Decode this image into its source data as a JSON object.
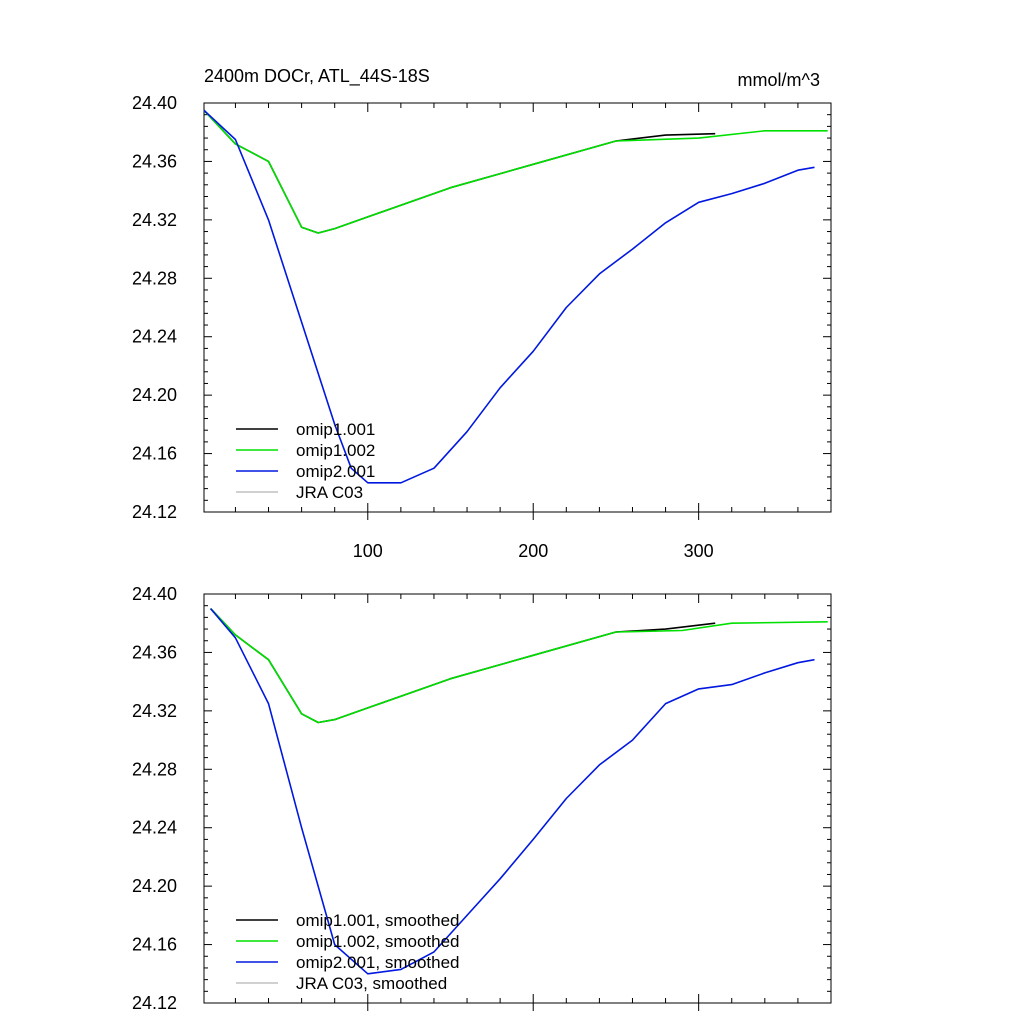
{
  "chart_data": [
    {
      "type": "line",
      "title": "2400m DOCr, ATL_44S-18S",
      "units": "mmol/m^3",
      "xlim": [
        1,
        380
      ],
      "ylim": [
        24.12,
        24.4
      ],
      "x_tick_labels": [
        "100",
        "200",
        "300"
      ],
      "x_tick_values": [
        100,
        200,
        300
      ],
      "y_tick_labels": [
        "24.40",
        "24.36",
        "24.32",
        "24.28",
        "24.24",
        "24.20",
        "24.16",
        "24.12"
      ],
      "y_tick_values": [
        24.4,
        24.36,
        24.32,
        24.28,
        24.24,
        24.2,
        24.16,
        24.12
      ],
      "grid": false,
      "legend_position": "bottom-left",
      "series": [
        {
          "name": "omip1.001",
          "color": "#000000",
          "x": [
            1,
            20,
            40,
            60,
            70,
            80,
            100,
            150,
            200,
            250,
            280,
            310
          ],
          "y": [
            24.395,
            24.372,
            24.36,
            24.315,
            24.311,
            24.314,
            24.322,
            24.342,
            24.358,
            24.374,
            24.378,
            24.379
          ]
        },
        {
          "name": "omip1.002",
          "color": "#00e000",
          "x": [
            1,
            20,
            40,
            60,
            70,
            80,
            100,
            150,
            200,
            250,
            300,
            340,
            378
          ],
          "y": [
            24.395,
            24.372,
            24.36,
            24.315,
            24.311,
            24.314,
            24.322,
            24.342,
            24.358,
            24.374,
            24.376,
            24.381,
            24.381
          ]
        },
        {
          "name": "omip2.001",
          "color": "#0018e0",
          "x": [
            1,
            20,
            40,
            60,
            80,
            90,
            100,
            120,
            140,
            160,
            180,
            200,
            220,
            240,
            260,
            280,
            300,
            320,
            340,
            360,
            370
          ],
          "y": [
            24.395,
            24.375,
            24.32,
            24.25,
            24.18,
            24.15,
            24.14,
            24.14,
            24.15,
            24.175,
            24.205,
            24.23,
            24.26,
            24.283,
            24.3,
            24.318,
            24.332,
            24.338,
            24.345,
            24.354,
            24.356
          ]
        },
        {
          "name": "JRA C03",
          "color": "#c0c0c0",
          "x": [],
          "y": []
        }
      ]
    },
    {
      "type": "line",
      "title": "",
      "xlim": [
        1,
        380
      ],
      "ylim": [
        24.12,
        24.4
      ],
      "x_tick_values": [
        100,
        200,
        300
      ],
      "y_tick_labels": [
        "24.40",
        "24.36",
        "24.32",
        "24.28",
        "24.24",
        "24.20",
        "24.16",
        "24.12"
      ],
      "y_tick_values": [
        24.4,
        24.36,
        24.32,
        24.28,
        24.24,
        24.2,
        24.16,
        24.12
      ],
      "grid": false,
      "legend_position": "bottom-left",
      "series": [
        {
          "name": "omip1.001, smoothed",
          "color": "#000000",
          "x": [
            5,
            20,
            40,
            60,
            70,
            80,
            100,
            150,
            200,
            250,
            280,
            310
          ],
          "y": [
            24.39,
            24.372,
            24.355,
            24.318,
            24.312,
            24.314,
            24.322,
            24.342,
            24.358,
            24.374,
            24.376,
            24.38
          ]
        },
        {
          "name": "omip1.002, smoothed",
          "color": "#00e000",
          "x": [
            5,
            20,
            40,
            60,
            70,
            80,
            100,
            150,
            200,
            250,
            290,
            320,
            378
          ],
          "y": [
            24.39,
            24.372,
            24.355,
            24.318,
            24.312,
            24.314,
            24.322,
            24.342,
            24.358,
            24.374,
            24.375,
            24.38,
            24.381
          ]
        },
        {
          "name": "omip2.001, smoothed",
          "color": "#0018e0",
          "x": [
            5,
            20,
            40,
            60,
            80,
            100,
            120,
            140,
            160,
            180,
            200,
            220,
            240,
            260,
            280,
            300,
            320,
            340,
            360,
            370
          ],
          "y": [
            24.39,
            24.37,
            24.325,
            24.24,
            24.16,
            24.14,
            24.143,
            24.155,
            24.18,
            24.205,
            24.232,
            24.26,
            24.283,
            24.3,
            24.325,
            24.335,
            24.338,
            24.346,
            24.353,
            24.355
          ]
        },
        {
          "name": "JRA C03, smoothed",
          "color": "#c0c0c0",
          "x": [],
          "y": []
        }
      ]
    }
  ]
}
